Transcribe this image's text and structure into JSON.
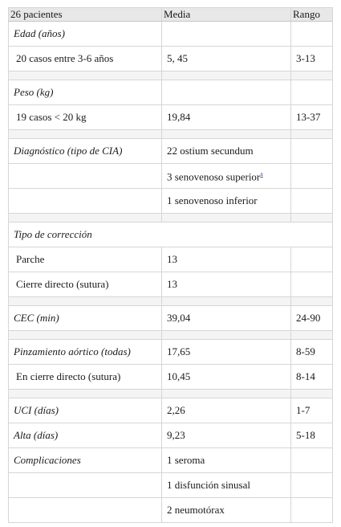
{
  "table": {
    "headers": [
      "26 pacientes",
      "Media",
      "Rango"
    ],
    "rows": [
      {
        "label": "Edad (años)",
        "media": "",
        "rango": ""
      },
      {
        "label": "20 casos entre 3-6 años",
        "media": "5, 45",
        "rango": "3-13"
      },
      {
        "label": "Peso (kg)",
        "media": "",
        "rango": ""
      },
      {
        "label": "19 casos < 20 kg",
        "media": "19,84",
        "rango": "13-37"
      },
      {
        "label": "Diagnóstico (tipo de CIA)",
        "media": "22 ostium secundum",
        "rango": ""
      },
      {
        "label": "",
        "media": "3 senovenoso superior",
        "footnote": "a",
        "rango": ""
      },
      {
        "label": "",
        "media": "1 senovenoso inferior",
        "rango": ""
      },
      {
        "label": "Tipo de corrección"
      },
      {
        "label": "Parche",
        "media": "13",
        "rango": ""
      },
      {
        "label": "Cierre directo (sutura)",
        "media": "13",
        "rango": ""
      },
      {
        "label": "CEC (min)",
        "media": "39,04",
        "rango": "24-90"
      },
      {
        "label": "Pinzamiento aórtico (todas)",
        "media": "17,65",
        "rango": "8-59"
      },
      {
        "label": "En cierre directo (sutura)",
        "media": "10,45",
        "rango": "8-14"
      },
      {
        "label": "UCI (días)",
        "media": "2,26",
        "rango": "1-7"
      },
      {
        "label": "Alta (días)",
        "media": "9,23",
        "rango": "5-18"
      },
      {
        "label": "Complicaciones",
        "media": "1 seroma",
        "rango": ""
      },
      {
        "label": "",
        "media": "1 disfunción sinusal",
        "rango": ""
      },
      {
        "label": "",
        "media": "2 neumotórax",
        "rango": ""
      }
    ]
  }
}
